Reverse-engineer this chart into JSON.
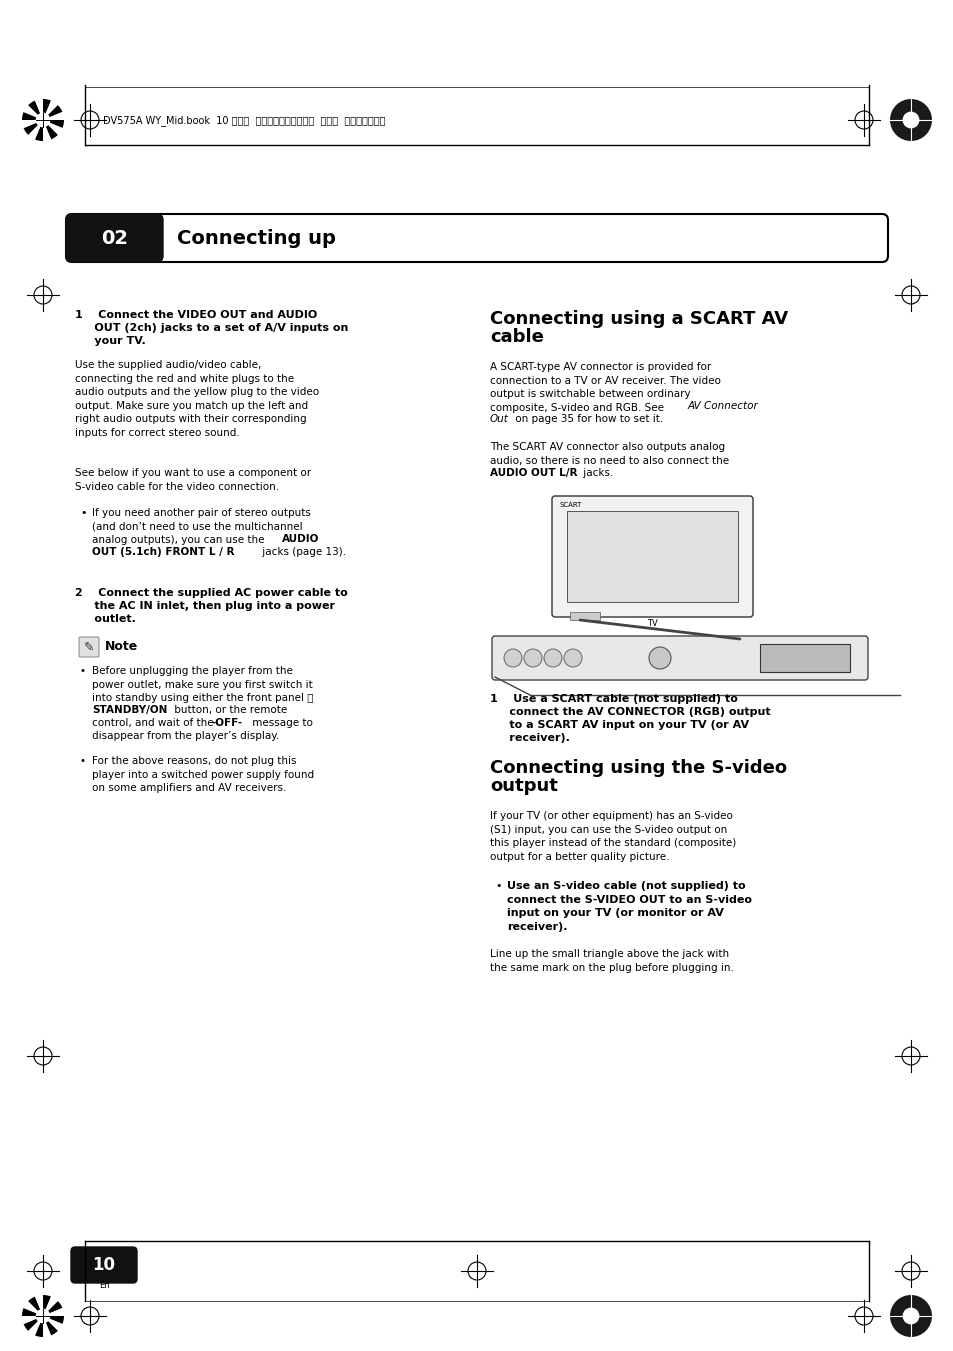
{
  "bg_color": "#ffffff",
  "page_width": 9.54,
  "page_height": 13.51,
  "dpi": 100,
  "top_meta_text": "DV575A WY_Mid.book  10 ページ  ２００４年１月２８日  水曜日  午後６時５３分",
  "header_number": "02",
  "header_text": "Connecting up",
  "page_number": "10"
}
